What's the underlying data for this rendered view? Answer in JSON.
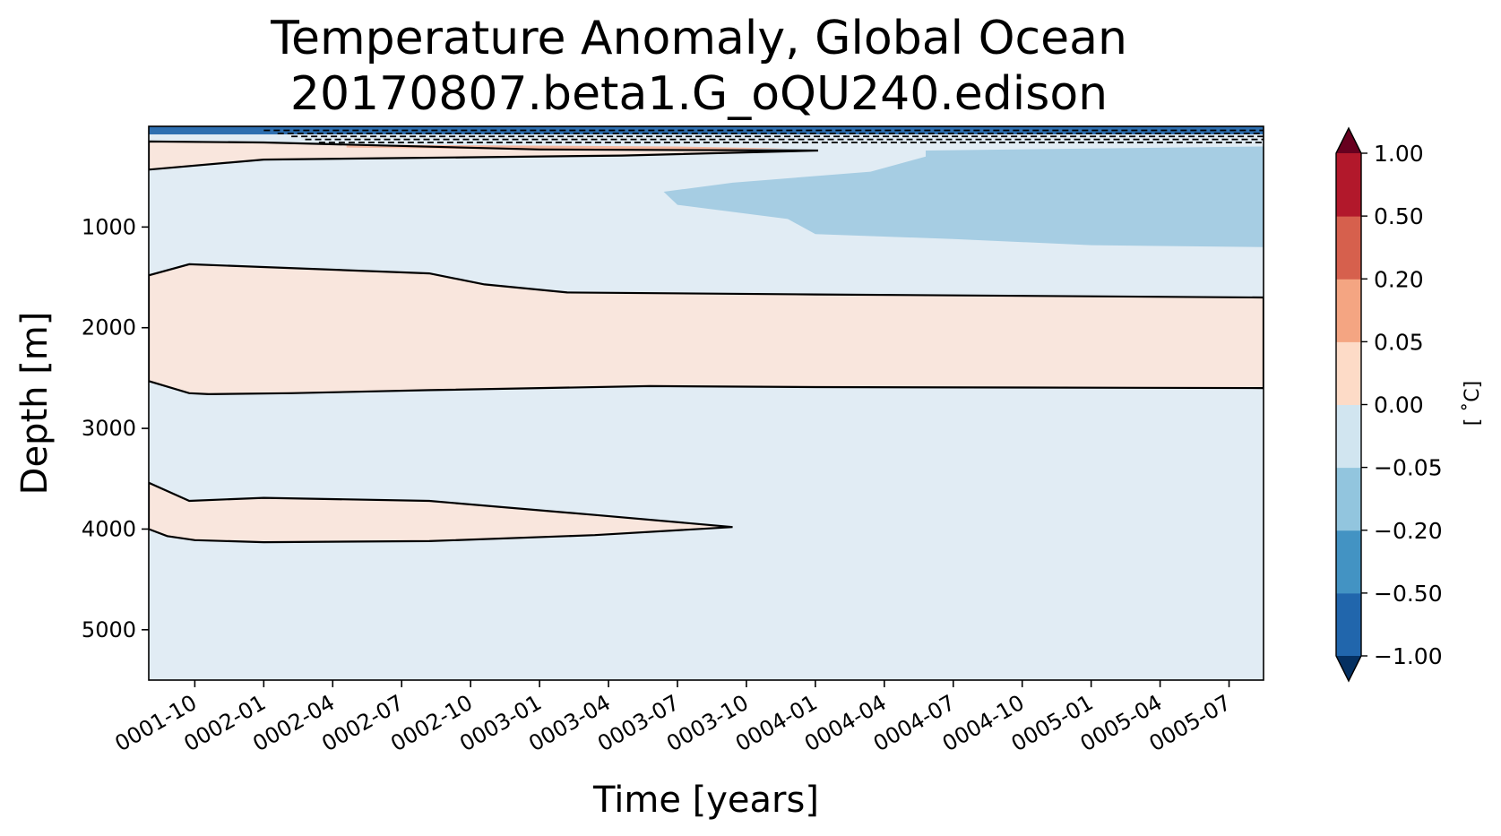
{
  "chart_data": {
    "type": "heatmap",
    "title": "Temperature Anomaly, Global Ocean",
    "subtitle": "20170807.beta1.G_oQU240.edison",
    "xlabel": "Time [years]",
    "ylabel": "Depth [m]",
    "x_tick_labels": [
      "0001-10",
      "0002-01",
      "0002-04",
      "0002-07",
      "0002-10",
      "0003-01",
      "0003-04",
      "0003-07",
      "0003-10",
      "0004-01",
      "0004-04",
      "0004-07",
      "0004-10",
      "0005-01",
      "0005-04",
      "0005-07"
    ],
    "y_ticks": [
      1000,
      2000,
      3000,
      4000,
      5000
    ],
    "y_tick_labels": [
      "1000",
      "2000",
      "3000",
      "4000",
      "5000"
    ],
    "ylim": [
      5500,
      0
    ],
    "x_range_years": [
      1.583,
      5.625
    ],
    "colorbar": {
      "label": "[$^\\circ$C]",
      "levels": [
        -1.0,
        -0.5,
        -0.2,
        -0.05,
        0.0,
        0.05,
        0.2,
        0.5,
        1.0
      ],
      "level_labels": [
        "−1.00",
        "−0.50",
        "−0.20",
        "−0.05",
        "0.00",
        "0.05",
        "0.20",
        "0.50",
        "1.00"
      ],
      "colors": [
        "#2166ac",
        "#4393c3",
        "#92c5de",
        "#d1e5f0",
        "#fddbc7",
        "#f4a582",
        "#d6604d",
        "#b2182b"
      ],
      "extend_min_color": "#053061",
      "extend_max_color": "#67001f"
    },
    "background_color": "#e1ecf4",
    "regions": [
      {
        "level": "0.00 to 0.05",
        "color": "#f9e6dd",
        "description": "warm band near surface",
        "time_depth": [
          [
            1.583,
            150
          ],
          [
            2.0,
            160
          ],
          [
            3.0,
            230
          ],
          [
            4.01,
            240
          ],
          [
            3.3,
            290
          ],
          [
            2.5,
            315
          ],
          [
            2.0,
            330
          ],
          [
            1.583,
            430
          ]
        ]
      },
      {
        "level": "0.05 to 0.20",
        "color": "#f4b7a0",
        "time_depth": [
          [
            2.3,
            180
          ],
          [
            3.5,
            200
          ],
          [
            3.9,
            220
          ],
          [
            3.3,
            240
          ],
          [
            2.3,
            210
          ]
        ]
      },
      {
        "level": "-0.20 to -0.05",
        "color": "#a6cde3",
        "time_depth": [
          [
            4.4,
            240
          ],
          [
            5.625,
            200
          ],
          [
            5.625,
            1200
          ],
          [
            5.0,
            1180
          ],
          [
            4.5,
            1120
          ],
          [
            4.0,
            1070
          ],
          [
            3.9,
            920
          ],
          [
            3.5,
            780
          ],
          [
            3.45,
            650
          ],
          [
            3.7,
            560
          ],
          [
            4.2,
            450
          ],
          [
            4.4,
            300
          ]
        ]
      },
      {
        "level": "0.00 to 0.05",
        "color": "#f9e6dd",
        "description": "mid-depth warm layer",
        "time_depth": [
          [
            1.583,
            1480
          ],
          [
            1.73,
            1370
          ],
          [
            2.6,
            1460
          ],
          [
            2.8,
            1570
          ],
          [
            3.1,
            1650
          ],
          [
            4.0,
            1670
          ],
          [
            5.625,
            1700
          ],
          [
            5.625,
            2600
          ],
          [
            4.0,
            2590
          ],
          [
            3.4,
            2580
          ],
          [
            2.6,
            2620
          ],
          [
            2.1,
            2650
          ],
          [
            1.8,
            2660
          ],
          [
            1.73,
            2650
          ],
          [
            1.583,
            2530
          ]
        ]
      },
      {
        "level": "0.00 to 0.05",
        "color": "#f9e6dd",
        "description": "deep warm lens",
        "time_depth": [
          [
            1.583,
            3540
          ],
          [
            1.73,
            3720
          ],
          [
            2.0,
            3690
          ],
          [
            2.6,
            3720
          ],
          [
            3.2,
            3860
          ],
          [
            3.7,
            3980
          ],
          [
            3.2,
            4060
          ],
          [
            2.6,
            4120
          ],
          [
            2.0,
            4130
          ],
          [
            1.75,
            4110
          ],
          [
            1.65,
            4070
          ],
          [
            1.583,
            4000
          ]
        ]
      }
    ],
    "surface_negative_layer": {
      "level": "below -0.50",
      "color": "#2e6fb0",
      "depth_range": [
        0,
        80
      ]
    }
  }
}
